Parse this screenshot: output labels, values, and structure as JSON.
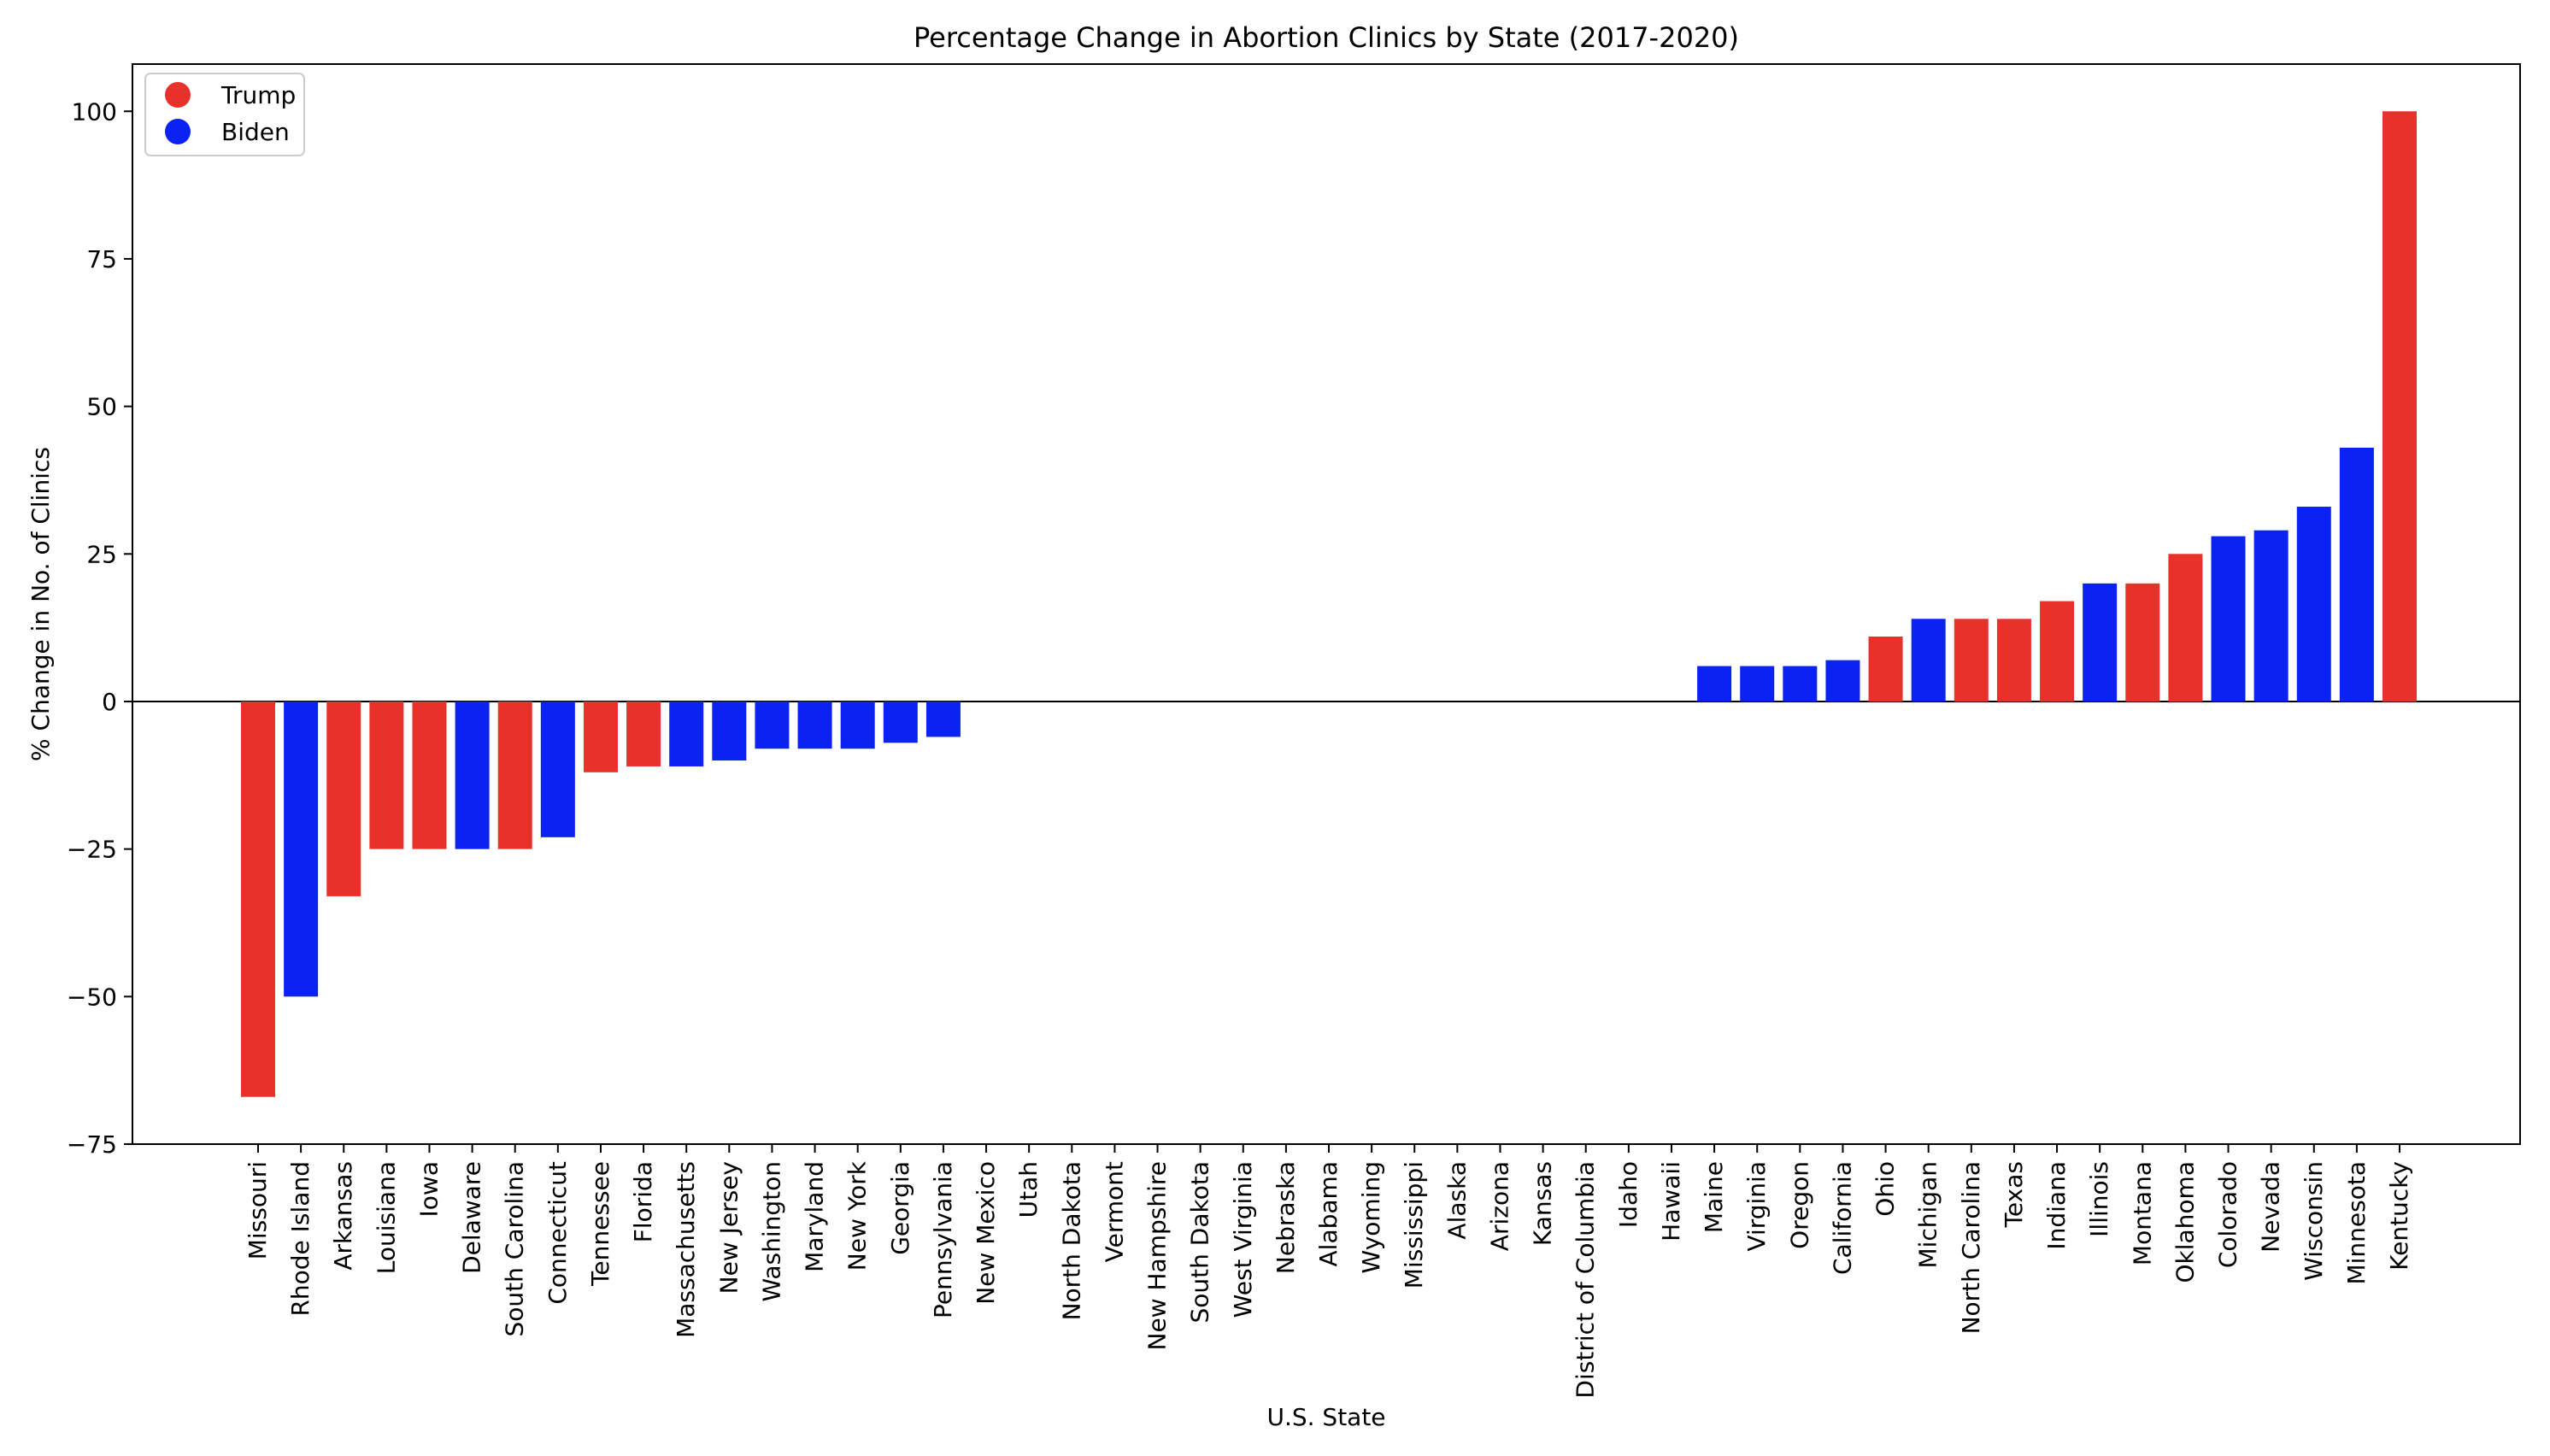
{
  "chart_data": {
    "type": "bar",
    "title": "Percentage Change in Abortion Clinics by State (2017-2020)",
    "xlabel": "U.S. State",
    "ylabel": "% Change in No. of Clinics",
    "ylim": [
      -75,
      108
    ],
    "yticks": [
      -75,
      -50,
      -25,
      0,
      25,
      50,
      75,
      100
    ],
    "ytick_labels": [
      "−75",
      "−50",
      "−25",
      "0",
      "25",
      "50",
      "75",
      "100"
    ],
    "grid": false,
    "legend_position": "top-left",
    "legend": [
      {
        "name": "Trump",
        "color": "#e8312a"
      },
      {
        "name": "Biden",
        "color": "#0a22f2"
      }
    ],
    "categories": [
      "Missouri",
      "Rhode Island",
      "Arkansas",
      "Louisiana",
      "Iowa",
      "Delaware",
      "South Carolina",
      "Connecticut",
      "Tennessee",
      "Florida",
      "Massachusetts",
      "New Jersey",
      "Washington",
      "Maryland",
      "New York",
      "Georgia",
      "Pennsylvania",
      "New Mexico",
      "Utah",
      "North Dakota",
      "Vermont",
      "New Hampshire",
      "South Dakota",
      "West Virginia",
      "Nebraska",
      "Alabama",
      "Wyoming",
      "Mississippi",
      "Alaska",
      "Arizona",
      "Kansas",
      "District of Columbia",
      "Idaho",
      "Hawaii",
      "Maine",
      "Virginia",
      "Oregon",
      "California",
      "Ohio",
      "Michigan",
      "North Carolina",
      "Texas",
      "Indiana",
      "Illinois",
      "Montana",
      "Oklahoma",
      "Colorado",
      "Nevada",
      "Wisconsin",
      "Minnesota",
      "Kentucky"
    ],
    "values": [
      -67,
      -50,
      -33,
      -25,
      -25,
      -25,
      -25,
      -23,
      -12,
      -11,
      -11,
      -10,
      -8,
      -8,
      -8,
      -7,
      -6,
      0,
      0,
      0,
      0,
      0,
      0,
      0,
      0,
      0,
      0,
      0,
      0,
      0,
      0,
      0,
      0,
      0,
      6,
      6,
      6,
      7,
      11,
      14,
      14,
      14,
      17,
      20,
      20,
      25,
      28,
      29,
      33,
      43,
      100
    ],
    "winner": [
      "Trump",
      "Biden",
      "Trump",
      "Trump",
      "Trump",
      "Biden",
      "Trump",
      "Biden",
      "Trump",
      "Trump",
      "Biden",
      "Biden",
      "Biden",
      "Biden",
      "Biden",
      "Biden",
      "Biden",
      "Biden",
      "Trump",
      "Trump",
      "Biden",
      "Biden",
      "Trump",
      "Trump",
      "Trump",
      "Trump",
      "Trump",
      "Trump",
      "Trump",
      "Biden",
      "Trump",
      "Biden",
      "Trump",
      "Biden",
      "Biden",
      "Biden",
      "Biden",
      "Biden",
      "Trump",
      "Biden",
      "Trump",
      "Trump",
      "Trump",
      "Biden",
      "Trump",
      "Trump",
      "Biden",
      "Biden",
      "Biden",
      "Biden",
      "Trump"
    ]
  }
}
